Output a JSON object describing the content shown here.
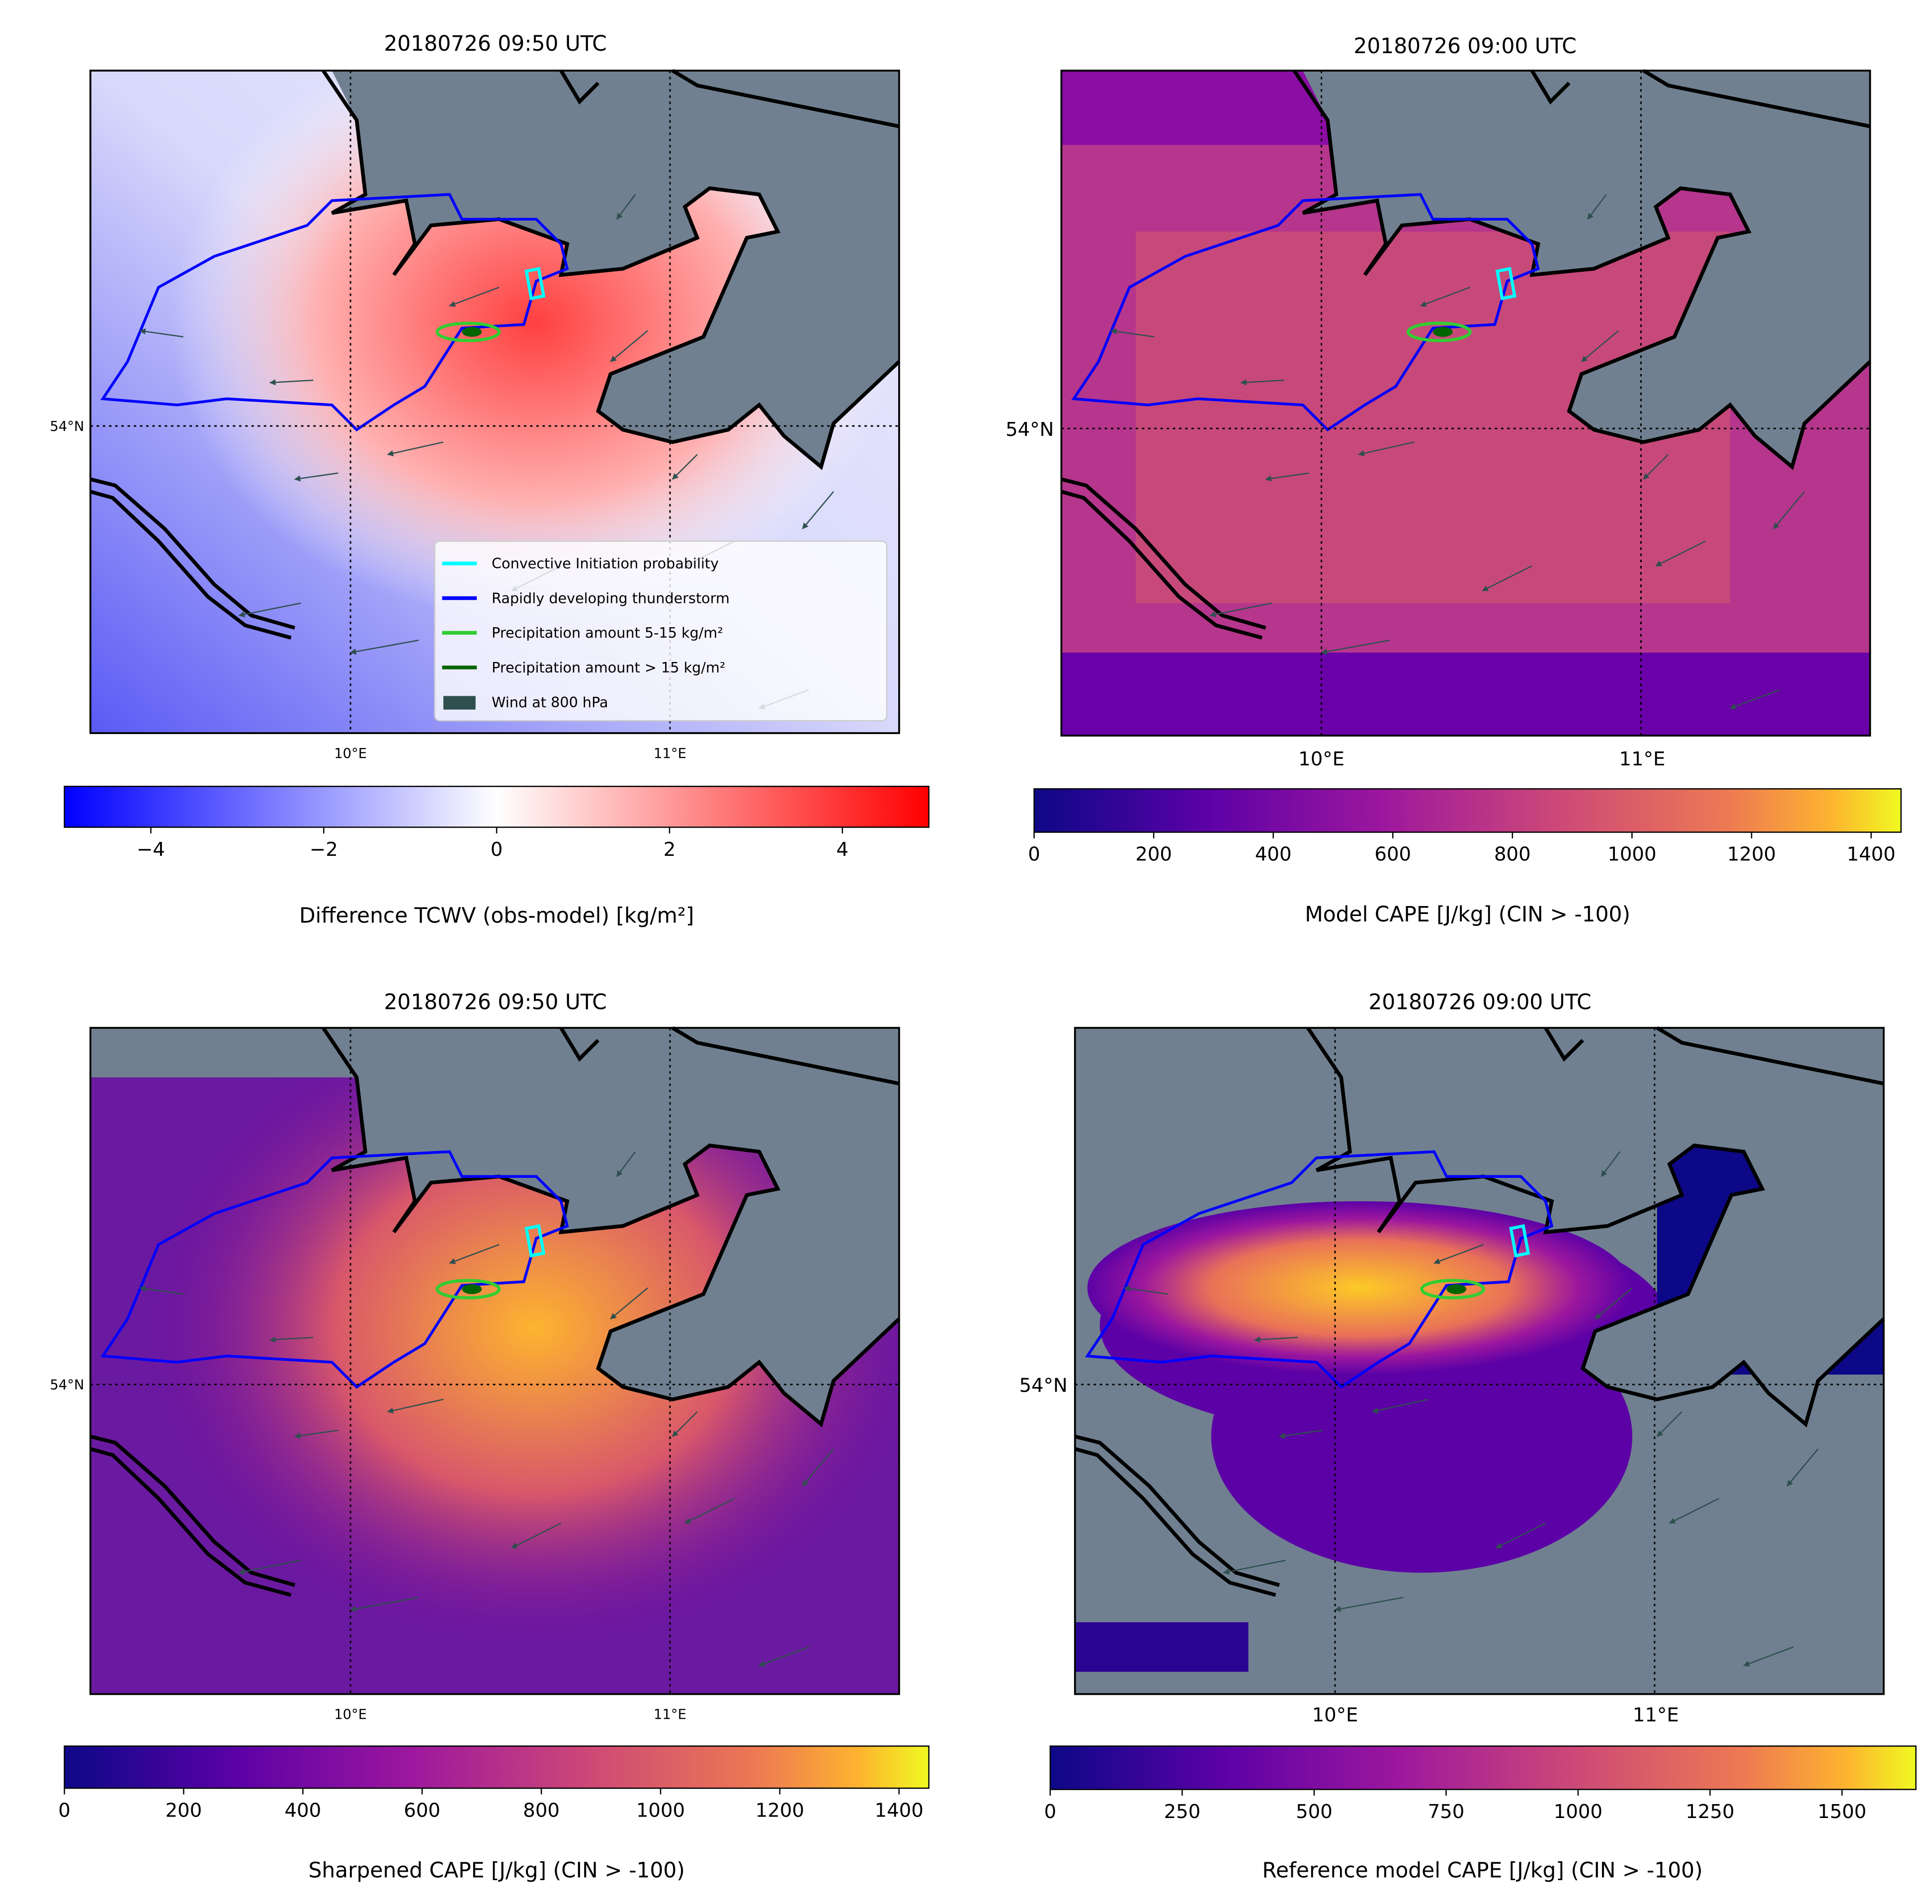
{
  "panels": [
    {
      "title": "20180726 09:50 UTC",
      "lon_labels": [
        "10°E",
        "11°E"
      ],
      "lat_label": "54°N",
      "colorbar": {
        "label": "Difference TCWV (obs-model) [kg/m²]",
        "colormap": "bwr",
        "range": [
          -5,
          5
        ],
        "ticks": [
          -4,
          -2,
          0,
          2,
          4
        ],
        "tick_labels": [
          "−4",
          "−2",
          "0",
          "2",
          "4"
        ]
      }
    },
    {
      "title": "20180726 09:00 UTC",
      "lon_labels": [
        "10°E",
        "11°E"
      ],
      "lat_label": "54°N",
      "colorbar": {
        "label": "Model CAPE [J/kg] (CIN > -100)",
        "colormap": "plasma",
        "range": [
          0,
          1450
        ],
        "ticks": [
          0,
          200,
          400,
          600,
          800,
          1000,
          1200,
          1400
        ],
        "tick_labels": [
          "0",
          "200",
          "400",
          "600",
          "800",
          "1000",
          "1200",
          "1400"
        ]
      }
    },
    {
      "title": "20180726 09:50 UTC",
      "lon_labels": [
        "10°E",
        "11°E"
      ],
      "lat_label": "54°N",
      "colorbar": {
        "label": "Sharpened CAPE [J/kg] (CIN > -100)",
        "colormap": "plasma",
        "range": [
          0,
          1450
        ],
        "ticks": [
          0,
          200,
          400,
          600,
          800,
          1000,
          1200,
          1400
        ],
        "tick_labels": [
          "0",
          "200",
          "400",
          "600",
          "800",
          "1000",
          "1200",
          "1400"
        ]
      }
    },
    {
      "title": "20180726 09:00 UTC",
      "lon_labels": [
        "10°E",
        "11°E"
      ],
      "lat_label": "54°N",
      "colorbar": {
        "label": "Reference model CAPE [J/kg] (CIN > -100)",
        "colormap": "plasma",
        "range": [
          0,
          1640
        ],
        "ticks": [
          0,
          250,
          500,
          750,
          1000,
          1250,
          1500
        ],
        "tick_labels": [
          "0",
          "250",
          "500",
          "750",
          "1000",
          "1250",
          "1500"
        ]
      }
    }
  ],
  "legend": {
    "entries": [
      {
        "label": "Convective Initiation probability",
        "color": "#00ffff",
        "kind": "line"
      },
      {
        "label": "Rapidly developing thunderstorm",
        "color": "#0000ff",
        "kind": "line"
      },
      {
        "label": "Precipitation amount 5-15 kg/m²",
        "color": "#32cd32",
        "kind": "line"
      },
      {
        "label": "Precipitation amount > 15 kg/m²",
        "color": "#006400",
        "kind": "line"
      },
      {
        "label": "Wind at 800 hPa",
        "color": "#2f4f4f",
        "kind": "patch"
      }
    ]
  },
  "colors": {
    "land": "#708090",
    "coast": "#000000"
  }
}
